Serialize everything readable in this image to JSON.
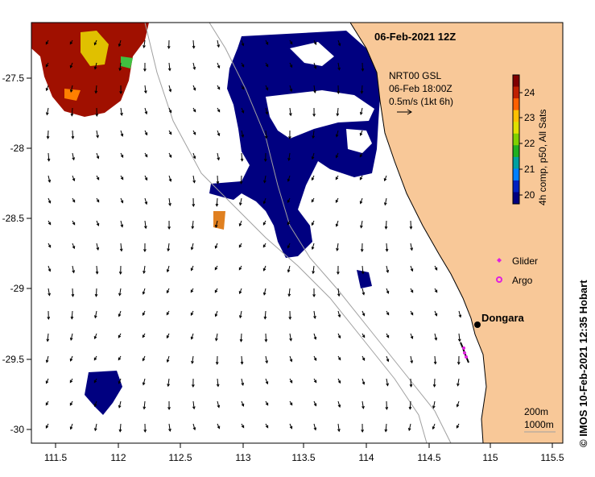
{
  "title": "06-Feb-2021 12Z",
  "info": {
    "product": "NRT00 GSL",
    "time": "06-Feb 18:00Z",
    "scale": "0.5m/s (1kt 6h)"
  },
  "colorbar": {
    "label": "4h comp, p50, All Sats",
    "ticks": [
      "24",
      "23",
      "22",
      "21",
      "20"
    ],
    "colors": [
      "#800000",
      "#c02000",
      "#ff6000",
      "#ffc000",
      "#e0e000",
      "#80d000",
      "#20b020",
      "#00a0a0",
      "#0080ff",
      "#0020c0",
      "#000080"
    ]
  },
  "axes": {
    "x_ticks": [
      "111.5",
      "112",
      "112.5",
      "113",
      "113.5",
      "114",
      "114.5",
      "115",
      "115.5"
    ],
    "y_ticks": [
      "-27.5",
      "-28",
      "-28.5",
      "-29",
      "-29.5",
      "-30"
    ]
  },
  "legend": {
    "glider_label": "Glider",
    "argo_label": "Argo",
    "glider_color": "#e020e0",
    "argo_color": "#e020e0"
  },
  "place": {
    "name": "Dongara"
  },
  "depth_contours": {
    "c1": "200m",
    "c2": "1000m"
  },
  "credit": "© IMOS 10-Feb-2021 12:35 Hobart",
  "colors": {
    "land": "#f8c898",
    "cold": "#000080",
    "warm": "#a01000",
    "contour": "#a0a0a0"
  }
}
